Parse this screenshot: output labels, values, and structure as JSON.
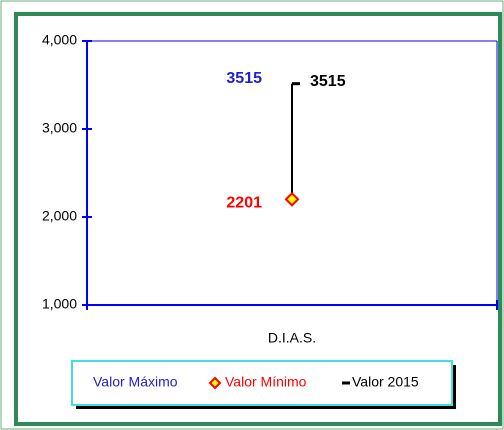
{
  "chart_data": {
    "type": "hilo",
    "categories": [
      "D.I.A.S."
    ],
    "series": [
      {
        "name": "Valor Máximo",
        "color": "#1f1fcc",
        "values": [
          3515
        ]
      },
      {
        "name": "Valor Mínimo",
        "color": "#ff0000",
        "values": [
          2201
        ]
      },
      {
        "name": "Valor 2015",
        "color": "#000000",
        "values": [
          3515
        ]
      }
    ],
    "ylim": [
      1000,
      4000
    ],
    "yticks": [
      {
        "value": 1000,
        "label": "1,000"
      },
      {
        "value": 2000,
        "label": "2,000"
      },
      {
        "value": 3000,
        "label": "3,000"
      },
      {
        "value": 4000,
        "label": "4,000"
      }
    ],
    "axis_color": "#0000ff",
    "frame_color": "#2e8b57"
  }
}
